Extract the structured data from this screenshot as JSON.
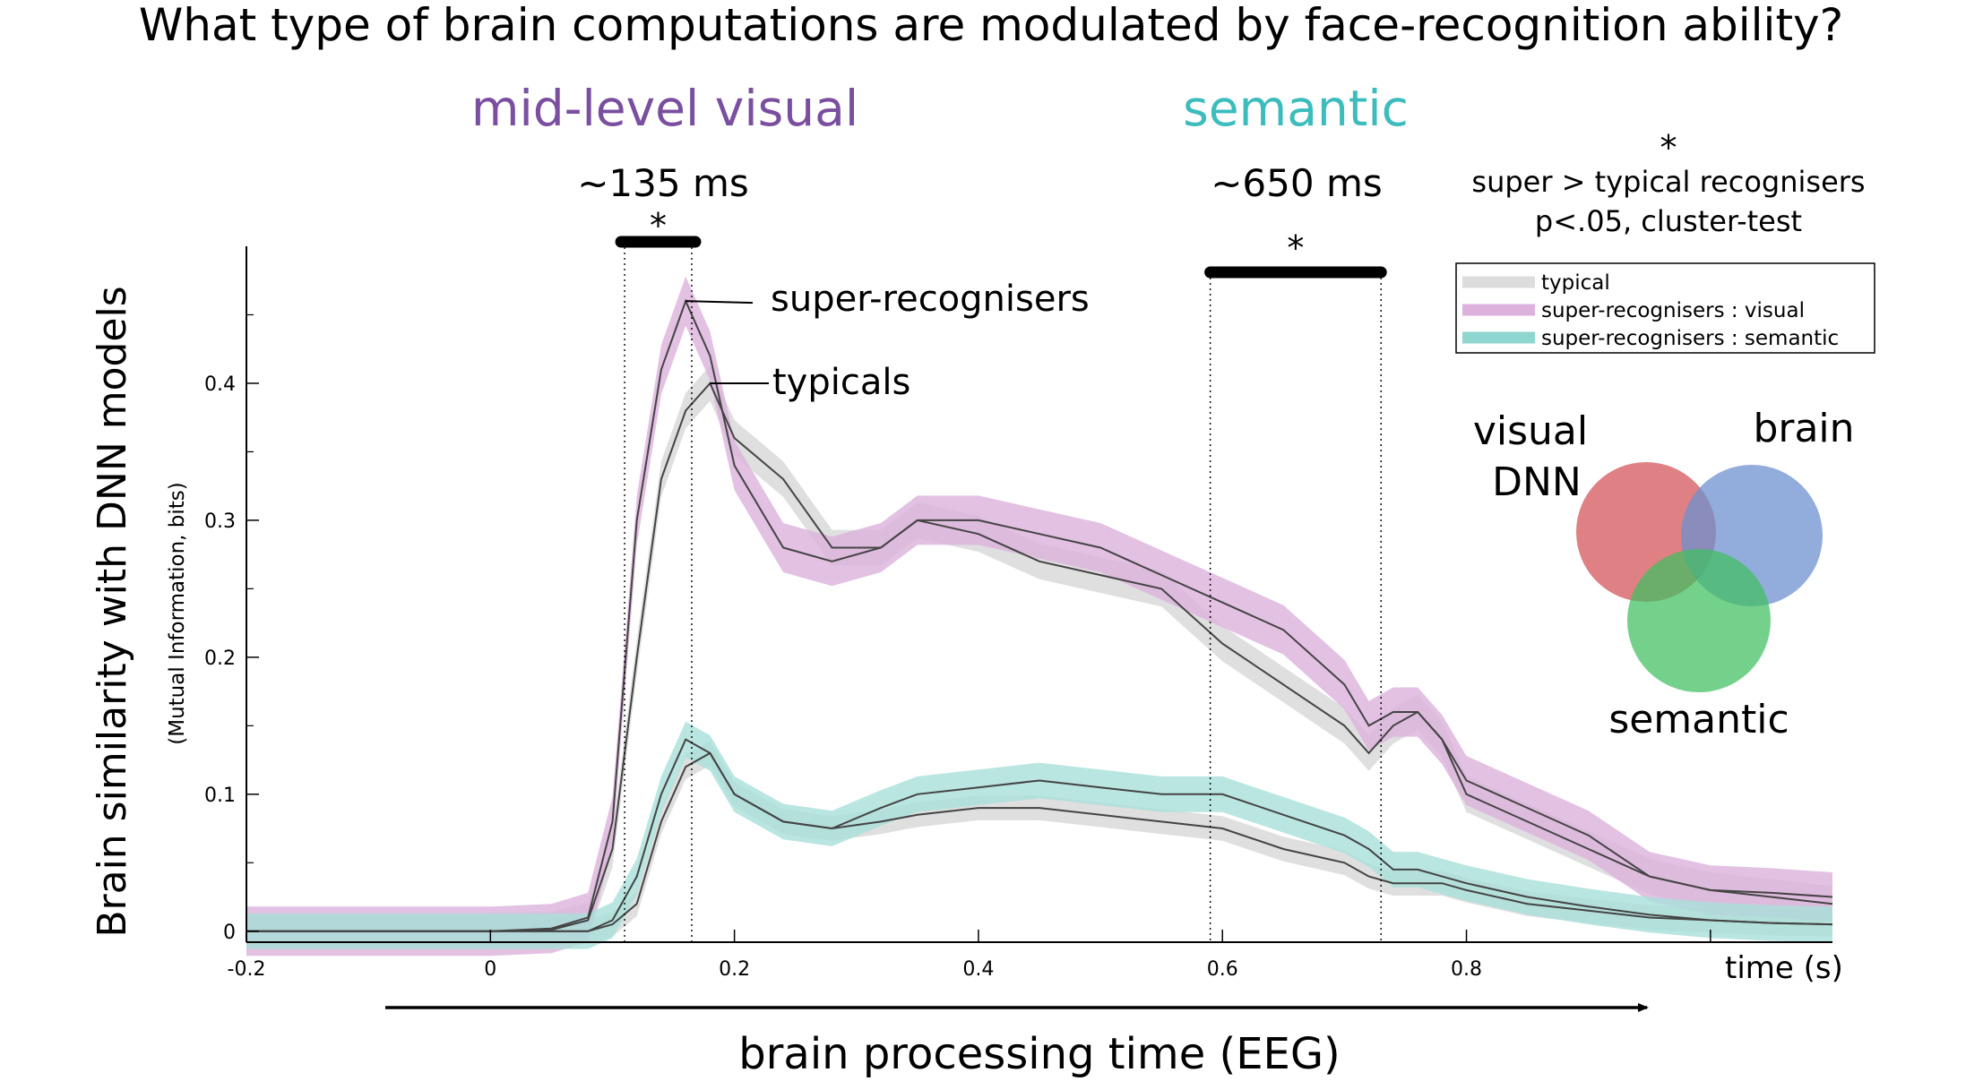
{
  "title": "What type of brain computations are modulated by face-recognition ability?",
  "headings": {
    "visual": "mid-level visual",
    "semantic": "semantic",
    "visual_latency": "~135 ms",
    "semantic_latency": "~650 ms",
    "star": "*"
  },
  "significance_note": {
    "star": "*",
    "line1": "super > typical recognisers",
    "line2": "p<.05, cluster-test"
  },
  "line_labels": {
    "super": "super-recognisers",
    "typical": "typicals"
  },
  "venn": {
    "visual_label_1": "visual",
    "visual_label_2": "DNN",
    "brain_label": "brain",
    "semantic_label": "semantic",
    "colors": {
      "visual": "#d96b6e",
      "brain": "#6d90cf",
      "semantic": "#3fbf5f"
    }
  },
  "colors": {
    "typical_band": "#dcdcdc",
    "visual_band": "#dcb2dc",
    "semantic_band": "#a9e0da",
    "line": "#444444",
    "visual_heading": "#7a4fa0",
    "semantic_heading": "#3cbcbc"
  },
  "chart_data": {
    "type": "line",
    "xlabel": "time (s)",
    "ylabel": "Brain similarity with DNN models",
    "ylabel_sub": "(Mutual Information, bits)",
    "bottom_label": "brain processing time (EEG)",
    "xlim": [
      -0.2,
      1.1
    ],
    "ylim": [
      -0.008,
      0.5
    ],
    "xticks": [
      -0.2,
      0,
      0.2,
      0.4,
      0.6,
      0.8,
      1.0
    ],
    "xtick_labels": [
      "-0.2",
      "0",
      "0.2",
      "0.4",
      "0.6",
      "0.8",
      ""
    ],
    "yticks": [
      0,
      0.1,
      0.2,
      0.3,
      0.4
    ],
    "ytick_labels": [
      "0",
      "0.1",
      "0.2",
      "0.3",
      "0.4"
    ],
    "legend_position": "top-right",
    "legend": [
      "typical",
      "super-recognisers : visual",
      "super-recognisers : semantic"
    ],
    "significance": [
      {
        "name": "visual",
        "x0": 0.11,
        "x1": 0.165
      },
      {
        "name": "semantic",
        "x0": 0.59,
        "x1": 0.73
      }
    ],
    "x": [
      -0.2,
      -0.1,
      0,
      0.05,
      0.08,
      0.1,
      0.12,
      0.14,
      0.16,
      0.18,
      0.2,
      0.24,
      0.28,
      0.32,
      0.35,
      0.4,
      0.45,
      0.5,
      0.55,
      0.6,
      0.65,
      0.7,
      0.72,
      0.74,
      0.76,
      0.78,
      0.8,
      0.85,
      0.9,
      0.95,
      1.0,
      1.05,
      1.1
    ],
    "series": [
      {
        "name": "typicals",
        "kind": "visual-typical",
        "band": 0.013,
        "values": [
          0.0,
          0.0,
          0.0,
          0.001,
          0.008,
          0.06,
          0.2,
          0.33,
          0.38,
          0.4,
          0.36,
          0.33,
          0.28,
          0.28,
          0.3,
          0.29,
          0.27,
          0.26,
          0.25,
          0.21,
          0.18,
          0.15,
          0.13,
          0.15,
          0.16,
          0.14,
          0.1,
          0.08,
          0.06,
          0.04,
          0.03,
          0.025,
          0.02
        ]
      },
      {
        "name": "super-recognisers",
        "kind": "visual-super",
        "band": 0.018,
        "values": [
          0.0,
          0.0,
          0.0,
          0.002,
          0.01,
          0.08,
          0.3,
          0.41,
          0.46,
          0.42,
          0.34,
          0.28,
          0.27,
          0.28,
          0.3,
          0.3,
          0.29,
          0.28,
          0.26,
          0.24,
          0.22,
          0.18,
          0.15,
          0.16,
          0.16,
          0.14,
          0.11,
          0.09,
          0.07,
          0.04,
          0.03,
          0.028,
          0.025
        ]
      },
      {
        "name": "typical",
        "kind": "semantic-typical",
        "band": 0.009,
        "values": [
          0.0,
          0.0,
          0.0,
          0.0,
          0.0,
          0.005,
          0.02,
          0.08,
          0.12,
          0.13,
          0.1,
          0.08,
          0.075,
          0.08,
          0.085,
          0.09,
          0.09,
          0.085,
          0.08,
          0.075,
          0.06,
          0.05,
          0.04,
          0.035,
          0.035,
          0.035,
          0.03,
          0.02,
          0.015,
          0.01,
          0.008,
          0.006,
          0.005
        ]
      },
      {
        "name": "super-recognisers : semantic",
        "kind": "semantic-super",
        "band": 0.013,
        "values": [
          0.0,
          0.0,
          0.0,
          0.0,
          0.0,
          0.008,
          0.04,
          0.1,
          0.14,
          0.13,
          0.1,
          0.08,
          0.075,
          0.09,
          0.1,
          0.105,
          0.11,
          0.105,
          0.1,
          0.1,
          0.085,
          0.07,
          0.06,
          0.045,
          0.045,
          0.04,
          0.035,
          0.025,
          0.018,
          0.012,
          0.008,
          0.006,
          0.005
        ]
      }
    ]
  }
}
